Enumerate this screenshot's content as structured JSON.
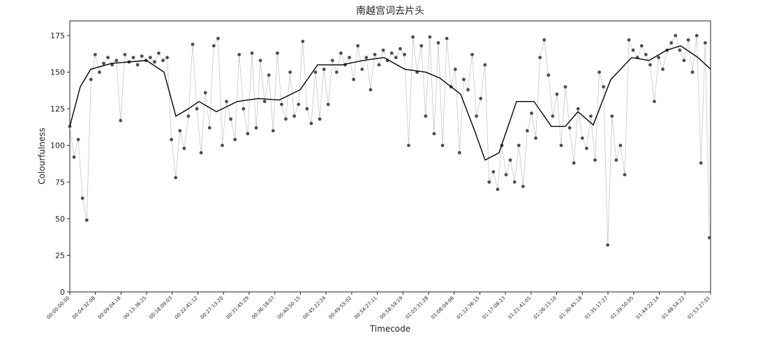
{
  "chart_data": {
    "type": "line",
    "title": "南越宫词去片头",
    "xlabel": "Timecode",
    "ylabel": "Colourfulness",
    "xlim": [
      0,
      6807
    ],
    "ylim": [
      0,
      185
    ],
    "xticks": [
      {
        "value": 0,
        "label": "00:00:00:00"
      },
      {
        "value": 272,
        "label": "00:04:32:08"
      },
      {
        "value": 544,
        "label": "00:09:04:16"
      },
      {
        "value": 816,
        "label": "00:13:36:25"
      },
      {
        "value": 1089,
        "label": "00:18:09:03"
      },
      {
        "value": 1361,
        "label": "00:22:41:12"
      },
      {
        "value": 1633,
        "label": "00:27:13:20"
      },
      {
        "value": 1905,
        "label": "00:31:45:29"
      },
      {
        "value": 2178,
        "label": "00:36:18:07"
      },
      {
        "value": 2450,
        "label": "00:40:50:15"
      },
      {
        "value": 2722,
        "label": "00:45:22:24"
      },
      {
        "value": 2995,
        "label": "00:49:55:02"
      },
      {
        "value": 3267,
        "label": "00:54:27:11"
      },
      {
        "value": 3539,
        "label": "00:58:59:19"
      },
      {
        "value": 3811,
        "label": "01:03:31:28"
      },
      {
        "value": 4084,
        "label": "01:08:04:06"
      },
      {
        "value": 4356,
        "label": "01:12:36:15"
      },
      {
        "value": 4628,
        "label": "01:17:08:23"
      },
      {
        "value": 4901,
        "label": "01:21:41:01"
      },
      {
        "value": 5173,
        "label": "01:26:13:10"
      },
      {
        "value": 5445,
        "label": "01:30:45:18"
      },
      {
        "value": 5717,
        "label": "01:35:17:27"
      },
      {
        "value": 5990,
        "label": "01:39:50:05"
      },
      {
        "value": 6262,
        "label": "01:44:22:14"
      },
      {
        "value": 6534,
        "label": "01:48:54:22"
      },
      {
        "value": 6807,
        "label": "01:53:27:01"
      }
    ],
    "yticks": [
      0,
      25,
      50,
      75,
      100,
      125,
      150,
      175
    ],
    "series": [
      {
        "color": "#c8c8c8",
        "marker_color": "#4d4d4d",
        "markers": true,
        "x": [
          0,
          45,
          90,
          135,
          180,
          225,
          270,
          315,
          360,
          405,
          450,
          495,
          540,
          585,
          630,
          675,
          720,
          765,
          810,
          855,
          900,
          945,
          990,
          1035,
          1080,
          1125,
          1170,
          1215,
          1260,
          1305,
          1350,
          1395,
          1440,
          1485,
          1530,
          1575,
          1620,
          1665,
          1710,
          1755,
          1800,
          1845,
          1890,
          1935,
          1980,
          2025,
          2070,
          2115,
          2160,
          2205,
          2250,
          2295,
          2340,
          2385,
          2430,
          2475,
          2520,
          2565,
          2610,
          2655,
          2700,
          2745,
          2790,
          2835,
          2880,
          2925,
          2970,
          3015,
          3060,
          3105,
          3150,
          3195,
          3240,
          3285,
          3330,
          3375,
          3420,
          3465,
          3510,
          3555,
          3600,
          3645,
          3690,
          3735,
          3780,
          3825,
          3870,
          3915,
          3960,
          4005,
          4050,
          4095,
          4140,
          4185,
          4230,
          4275,
          4320,
          4365,
          4410,
          4455,
          4500,
          4545,
          4590,
          4635,
          4680,
          4725,
          4770,
          4815,
          4860,
          4905,
          4950,
          4995,
          5040,
          5085,
          5130,
          5175,
          5220,
          5265,
          5310,
          5355,
          5400,
          5445,
          5490,
          5535,
          5580,
          5625,
          5670,
          5715,
          5760,
          5805,
          5850,
          5895,
          5940,
          5985,
          6030,
          6075,
          6120,
          6165,
          6210,
          6255,
          6300,
          6345,
          6390,
          6435,
          6480,
          6525,
          6570,
          6615,
          6660,
          6705,
          6750,
          6795
        ],
        "values": [
          113,
          92,
          104,
          64,
          49,
          145,
          162,
          150,
          156,
          160,
          155,
          158,
          117,
          162,
          157,
          160,
          155,
          161,
          158,
          160,
          157,
          163,
          158,
          160,
          104,
          78,
          110,
          98,
          120,
          169,
          125,
          95,
          136,
          112,
          168,
          173,
          100,
          130,
          118,
          104,
          162,
          125,
          108,
          163,
          112,
          158,
          130,
          148,
          110,
          163,
          128,
          118,
          150,
          120,
          128,
          171,
          125,
          115,
          150,
          118,
          152,
          128,
          158,
          150,
          163,
          155,
          160,
          145,
          168,
          152,
          160,
          138,
          162,
          155,
          165,
          158,
          163,
          160,
          166,
          162,
          100,
          174,
          150,
          168,
          120,
          174,
          108,
          170,
          100,
          173,
          140,
          152,
          95,
          145,
          138,
          162,
          120,
          132,
          155,
          75,
          82,
          70,
          100,
          80,
          90,
          75,
          100,
          72,
          110,
          122,
          105,
          160,
          172,
          148,
          120,
          135,
          100,
          140,
          112,
          88,
          125,
          105,
          98,
          120,
          90,
          150,
          140,
          32,
          120,
          90,
          100,
          80,
          172,
          165,
          160,
          168,
          162,
          155,
          130,
          160,
          152,
          165,
          170,
          175,
          165,
          158,
          172,
          150,
          175,
          88,
          170,
          37
        ]
      },
      {
        "color": "#000000",
        "markers": false,
        "x": [
          0,
          111,
          222,
          445,
          816,
          1001,
          1127,
          1261,
          1372,
          1557,
          1780,
          2002,
          2225,
          2447,
          2632,
          2892,
          3114,
          3337,
          3559,
          3782,
          3930,
          4152,
          4301,
          4412,
          4560,
          4746,
          4931,
          5116,
          5264,
          5398,
          5561,
          5747,
          5969,
          6154,
          6340,
          6489,
          6674,
          6807
        ],
        "values": [
          113,
          140,
          152,
          156,
          158,
          150,
          120,
          125,
          130,
          123,
          130,
          132,
          131,
          138,
          155,
          155,
          158,
          160,
          152,
          150,
          146,
          135,
          110,
          90,
          95,
          130,
          130,
          113,
          113,
          123,
          114,
          145,
          160,
          158,
          165,
          168,
          160,
          152
        ]
      }
    ]
  }
}
